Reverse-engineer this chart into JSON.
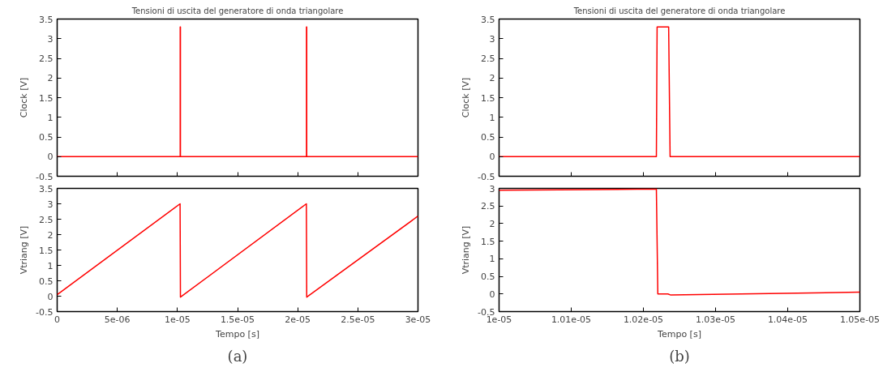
{
  "chart_data": [
    {
      "type": "line",
      "title": "Tensioni di uscita del generatore di onda triangolare",
      "ylabel": "Clock [V]",
      "tick_labels": "y",
      "grid": false,
      "xlim": [
        0,
        3e-05
      ],
      "ylim": [
        -0.5,
        3.5
      ],
      "xticks": [
        {
          "value": 5e-06,
          "label": null
        },
        {
          "value": 1e-05,
          "label": null
        },
        {
          "value": 1.5e-05,
          "label": null
        },
        {
          "value": 2e-05,
          "label": null
        },
        {
          "value": 2.5e-05,
          "label": null
        }
      ],
      "yticks": [
        -0.5,
        0,
        0.5,
        1,
        1.5,
        2,
        2.5,
        3,
        3.5
      ],
      "series": [
        {
          "color": "#ff0000",
          "x": [
            0,
            1.023e-05,
            1.023e-05,
            1.025e-05,
            1.025e-05,
            2.073e-05,
            2.073e-05,
            2.075e-05,
            2.075e-05,
            3e-05
          ],
          "values": [
            0,
            0,
            3.3,
            3.3,
            0,
            0,
            3.3,
            3.3,
            0,
            0
          ]
        }
      ]
    },
    {
      "type": "line",
      "title": "Tensioni di uscita del generatore di onda triangolare",
      "ylabel": "Clock [V]",
      "tick_labels": "y",
      "grid": false,
      "xlim": [
        1e-05,
        1.05e-05
      ],
      "ylim": [
        -0.5,
        3.5
      ],
      "xticks": [
        {
          "value": 1.01e-05,
          "label": null
        },
        {
          "value": 1.02e-05,
          "label": null
        },
        {
          "value": 1.03e-05,
          "label": null
        },
        {
          "value": 1.04e-05,
          "label": null
        }
      ],
      "yticks": [
        -0.5,
        0,
        0.5,
        1,
        1.5,
        2,
        2.5,
        3,
        3.5
      ],
      "series": [
        {
          "color": "#ff0000",
          "x": [
            1e-05,
            1.0218e-05,
            1.0219e-05,
            1.0235e-05,
            1.0237e-05,
            1.05e-05
          ],
          "values": [
            0,
            0,
            3.3,
            3.3,
            0,
            0
          ]
        }
      ]
    },
    {
      "type": "line",
      "xlabel": "Tempo [s]",
      "ylabel": "Vtriang [V]",
      "grid": false,
      "annotations": [
        "(a)"
      ],
      "xlim": [
        0,
        3e-05
      ],
      "ylim": [
        -0.5,
        3.5
      ],
      "xticks": [
        0,
        {
          "value": 5e-06,
          "label": "5e-06"
        },
        {
          "value": 1e-05,
          "label": "1e-05"
        },
        {
          "value": 1.5e-05,
          "label": "1.5e-05"
        },
        {
          "value": 2e-05,
          "label": "2e-05"
        },
        {
          "value": 2.5e-05,
          "label": "2.5e-05"
        },
        {
          "value": 3e-05,
          "label": "3e-05"
        }
      ],
      "yticks": [
        -0.5,
        0,
        0.5,
        1,
        1.5,
        2,
        2.5,
        3,
        3.5
      ],
      "series": [
        {
          "color": "#ff0000",
          "x": [
            0,
            1.022e-05,
            1.025e-05,
            2.072e-05,
            2.075e-05,
            3e-05
          ],
          "values": [
            0.05,
            3.0,
            -0.03,
            3.0,
            -0.03,
            2.6
          ]
        }
      ]
    },
    {
      "type": "line",
      "xlabel": "Tempo [s]",
      "ylabel": "Vtriang [V]",
      "grid": false,
      "annotations": [
        "(b)"
      ],
      "xlim": [
        1e-05,
        1.05e-05
      ],
      "ylim": [
        -0.5,
        3
      ],
      "xticks": [
        {
          "value": 1e-05,
          "label": "1e-05"
        },
        {
          "value": 1.01e-05,
          "label": "1.01e-05"
        },
        {
          "value": 1.02e-05,
          "label": "1.02e-05"
        },
        {
          "value": 1.03e-05,
          "label": "1.03e-05"
        },
        {
          "value": 1.04e-05,
          "label": "1.04e-05"
        },
        {
          "value": 1.05e-05,
          "label": "1.05e-05"
        }
      ],
      "yticks": [
        -0.5,
        0,
        0.5,
        1,
        1.5,
        2,
        2.5,
        3
      ],
      "series": [
        {
          "color": "#ff0000",
          "x": [
            1e-05,
            1.0218e-05,
            1.022e-05,
            1.0234e-05,
            1.0238e-05,
            1.05e-05
          ],
          "values": [
            2.95,
            2.98,
            0.0,
            0.0,
            -0.03,
            0.05
          ]
        }
      ]
    }
  ]
}
